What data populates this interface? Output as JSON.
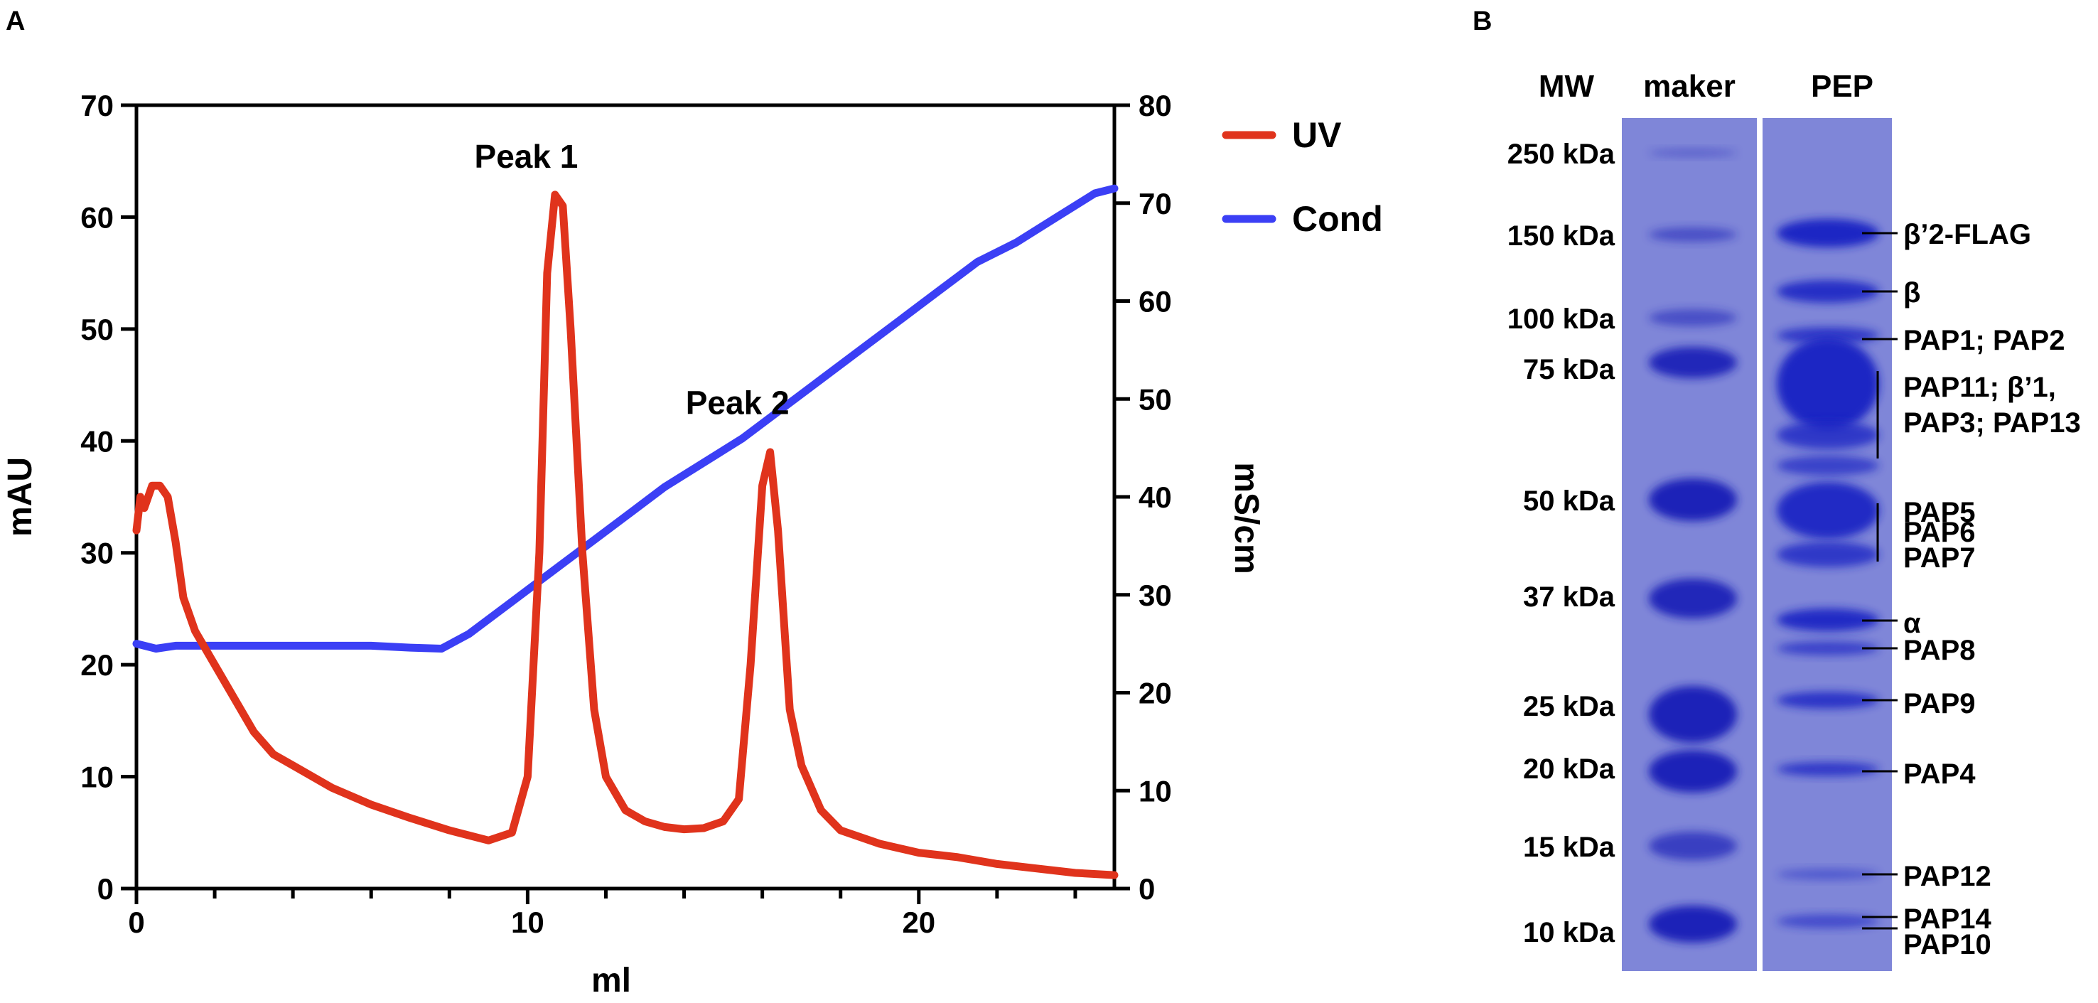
{
  "figure": {
    "panel_a_label": "A",
    "panel_b_label": "B"
  },
  "chart_data": [
    {
      "type": "line",
      "panel": "A",
      "xlabel": "ml",
      "ylabel": "mAU",
      "y2label": "mS/cm",
      "xlim": [
        0,
        25
      ],
      "ylim": [
        0,
        70
      ],
      "y2lim": [
        0,
        80
      ],
      "xticks": [
        0,
        10,
        20
      ],
      "yticks": [
        0,
        10,
        20,
        30,
        40,
        50,
        60,
        70
      ],
      "y2ticks": [
        0,
        10,
        20,
        30,
        40,
        50,
        60,
        70,
        80
      ],
      "grid": false,
      "legend_position": "top-right",
      "series": [
        {
          "name": "UV",
          "axis": "left",
          "color": "#e0331c",
          "points": [
            [
              0,
              32
            ],
            [
              0.1,
              35
            ],
            [
              0.2,
              34
            ],
            [
              0.4,
              36
            ],
            [
              0.6,
              36
            ],
            [
              0.8,
              35
            ],
            [
              1.0,
              31
            ],
            [
              1.2,
              26
            ],
            [
              1.5,
              23
            ],
            [
              2,
              20
            ],
            [
              2.5,
              17
            ],
            [
              3,
              14
            ],
            [
              3.5,
              12
            ],
            [
              4,
              11
            ],
            [
              5,
              9
            ],
            [
              6,
              7.5
            ],
            [
              7,
              6.3
            ],
            [
              8,
              5.2
            ],
            [
              9,
              4.3
            ],
            [
              9.6,
              5
            ],
            [
              10,
              10
            ],
            [
              10.3,
              30
            ],
            [
              10.5,
              55
            ],
            [
              10.7,
              62
            ],
            [
              10.9,
              61
            ],
            [
              11.1,
              50
            ],
            [
              11.4,
              30
            ],
            [
              11.7,
              16
            ],
            [
              12,
              10
            ],
            [
              12.5,
              7
            ],
            [
              13,
              6
            ],
            [
              13.5,
              5.5
            ],
            [
              14,
              5.3
            ],
            [
              14.5,
              5.4
            ],
            [
              15,
              6
            ],
            [
              15.4,
              8
            ],
            [
              15.7,
              20
            ],
            [
              16,
              36
            ],
            [
              16.2,
              39
            ],
            [
              16.4,
              32
            ],
            [
              16.7,
              16
            ],
            [
              17,
              11
            ],
            [
              17.5,
              7
            ],
            [
              18,
              5.2
            ],
            [
              19,
              4
            ],
            [
              20,
              3.2
            ],
            [
              21,
              2.8
            ],
            [
              22,
              2.2
            ],
            [
              23,
              1.8
            ],
            [
              24,
              1.4
            ],
            [
              25,
              1.2
            ]
          ]
        },
        {
          "name": "Cond",
          "axis": "right",
          "color": "#3b3ff5",
          "points": [
            [
              0,
              25
            ],
            [
              0.5,
              24.5
            ],
            [
              1,
              24.8
            ],
            [
              2,
              24.8
            ],
            [
              4,
              24.8
            ],
            [
              6,
              24.8
            ],
            [
              7,
              24.6
            ],
            [
              7.8,
              24.5
            ],
            [
              8.5,
              26
            ],
            [
              9.5,
              29
            ],
            [
              10.5,
              32
            ],
            [
              11.5,
              35
            ],
            [
              12.5,
              38
            ],
            [
              13.5,
              41
            ],
            [
              14.5,
              43.5
            ],
            [
              15.5,
              46
            ],
            [
              16.5,
              49
            ],
            [
              17.5,
              52
            ],
            [
              18.5,
              55
            ],
            [
              19.5,
              58
            ],
            [
              20.5,
              61
            ],
            [
              21.5,
              64
            ],
            [
              22.5,
              66
            ],
            [
              23.5,
              68.5
            ],
            [
              24.5,
              71
            ],
            [
              25,
              71.5
            ]
          ]
        }
      ],
      "annotations": [
        {
          "text": "Peak 1",
          "x": 10.8,
          "y": 62
        },
        {
          "text": "Peak 2",
          "x": 16.2,
          "y": 40
        }
      ]
    },
    {
      "type": "gel",
      "panel": "B",
      "lane_labels": [
        "MW",
        "maker",
        "PEP"
      ],
      "marker_labels": [
        "250 kDa",
        "150 kDa",
        "100 kDa",
        "75 kDa",
        "50 kDa",
        "37 kDa",
        "25 kDa",
        "20 kDa",
        "15 kDa",
        "10 kDa"
      ],
      "marker_kda": [
        250,
        150,
        100,
        75,
        50,
        37,
        25,
        20,
        15,
        10
      ],
      "band_labels": [
        "β’2-FLAG",
        "β",
        "PAP1; PAP2",
        "PAP11;  β’1,",
        "PAP3; PAP13",
        "PAP5",
        "PAP6",
        "PAP7",
        "α",
        "PAP8",
        "PAP9",
        "PAP4",
        "PAP12",
        "PAP14",
        "PAP10"
      ],
      "gel_color": "#7f86d8"
    }
  ]
}
